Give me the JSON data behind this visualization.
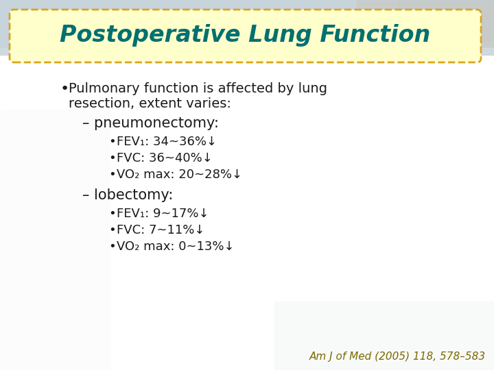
{
  "title": "Postoperative Lung Function",
  "title_color": "#007070",
  "title_box_facecolor": "#FFFFCC",
  "title_box_edgecolor": "#DAA520",
  "bullet1_line1": "Pulmonary function is affected by lung",
  "bullet1_line2": "resection, extent varies:",
  "dash1": "– pneumonectomy:",
  "sub1_1": "FEV₁: 34~36%↓",
  "sub1_2": "FVC: 36~40%↓",
  "sub1_3": "VO₂ max: 20~28%↓",
  "dash2": "– lobectomy:",
  "sub2_1": "FEV₁: 9~17%↓",
  "sub2_2": "FVC: 7~11%↓",
  "sub2_3": "VO₂ max: 0~13%↓",
  "reference": "Am J of Med (2005) 118, 578–583",
  "text_color": "#1a1a1a",
  "dash_color": "#1a1a1a",
  "ref_color": "#7B6800",
  "bg_top_color": "#C8D8E0",
  "bg_bottom_color": "#B8C8D0",
  "content_bg": "#FFFFFF",
  "title_fontsize": 24,
  "body_fontsize": 14,
  "dash_fontsize": 15,
  "sub_fontsize": 13
}
